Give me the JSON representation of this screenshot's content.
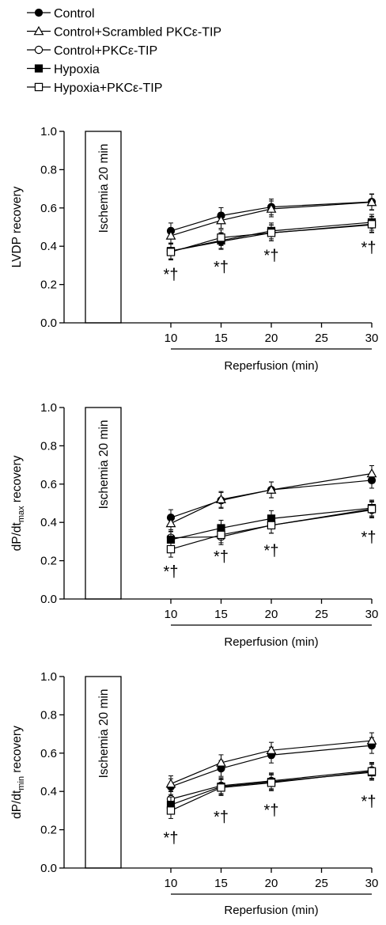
{
  "legend": [
    {
      "label": "Control",
      "marker": "circle-filled"
    },
    {
      "label": "Control+Scrambled PKCε-TIP",
      "marker": "triangle-open"
    },
    {
      "label": "Control+PKCε-TIP",
      "marker": "circle-open"
    },
    {
      "label": "Hypoxia",
      "marker": "square-filled"
    },
    {
      "label": "Hypoxia+PKCε-TIP",
      "marker": "square-open"
    }
  ],
  "ischemia_label": "Ischemia 20 min",
  "significance_label": "*†",
  "chart_data": [
    {
      "type": "line",
      "ylabel": "LVDP recovery",
      "ylabel_main": "LVDP recovery",
      "ylabel_sub": "",
      "ylabel_tail": "",
      "xlabel": "Reperfusion (min)",
      "ylim": [
        0,
        1.0
      ],
      "y_ticks": [
        "0.0",
        "0.2",
        "0.4",
        "0.6",
        "0.8",
        "1.0"
      ],
      "x_ticks": [
        "10",
        "15",
        "20",
        "25",
        "30"
      ],
      "x": [
        10,
        15,
        20,
        30
      ],
      "series": [
        {
          "name": "Control",
          "values": [
            0.48,
            0.56,
            0.605,
            0.632
          ]
        },
        {
          "name": "Control+Scrambled PKCε-TIP",
          "values": [
            0.455,
            0.535,
            0.595,
            0.63
          ]
        },
        {
          "name": "Control+PKCε-TIP",
          "values": [
            0.375,
            0.425,
            0.47,
            0.512
          ]
        },
        {
          "name": "Hypoxia",
          "values": [
            0.375,
            0.43,
            0.48,
            0.525
          ]
        },
        {
          "name": "Hypoxia+PKCε-TIP",
          "values": [
            0.37,
            0.445,
            0.47,
            0.515
          ]
        }
      ],
      "annotations": [
        {
          "x": 10,
          "y": 0.25
        },
        {
          "x": 15,
          "y": 0.29
        },
        {
          "x": 20,
          "y": 0.35
        },
        {
          "x": 30,
          "y": 0.39
        }
      ]
    },
    {
      "type": "line",
      "ylabel": "dP/dtmax recovery",
      "ylabel_main": "dP/dt",
      "ylabel_sub": "max",
      "ylabel_tail": " recovery",
      "xlabel": "Reperfusion (min)",
      "ylim": [
        0,
        1.0
      ],
      "y_ticks": [
        "0.0",
        "0.2",
        "0.4",
        "0.6",
        "0.8",
        "1.0"
      ],
      "x_ticks": [
        "10",
        "15",
        "20",
        "25",
        "30"
      ],
      "x": [
        10,
        15,
        20,
        30
      ],
      "series": [
        {
          "name": "Control",
          "values": [
            0.425,
            0.515,
            0.57,
            0.62
          ]
        },
        {
          "name": "Control+Scrambled PKCε-TIP",
          "values": [
            0.395,
            0.52,
            0.57,
            0.655
          ]
        },
        {
          "name": "Control+PKCε-TIP",
          "values": [
            0.32,
            0.325,
            0.385,
            0.465
          ]
        },
        {
          "name": "Hypoxia",
          "values": [
            0.31,
            0.37,
            0.42,
            0.475
          ]
        },
        {
          "name": "Hypoxia+PKCε-TIP",
          "values": [
            0.26,
            0.335,
            0.385,
            0.47
          ]
        }
      ],
      "annotations": [
        {
          "x": 10,
          "y": 0.14
        },
        {
          "x": 15,
          "y": 0.22
        },
        {
          "x": 20,
          "y": 0.25
        },
        {
          "x": 30,
          "y": 0.32
        }
      ]
    },
    {
      "type": "line",
      "ylabel": "dP/dtmin recovery",
      "ylabel_main": "dP/dt",
      "ylabel_sub": "min",
      "ylabel_tail": " recovery",
      "xlabel": "Reperfusion (min)",
      "ylim": [
        0,
        1.0
      ],
      "y_ticks": [
        "0.0",
        "0.2",
        "0.4",
        "0.6",
        "0.8",
        "1.0"
      ],
      "x_ticks": [
        "10",
        "15",
        "20",
        "25",
        "30"
      ],
      "x": [
        10,
        15,
        20,
        30
      ],
      "series": [
        {
          "name": "Control",
          "values": [
            0.425,
            0.52,
            0.59,
            0.64
          ]
        },
        {
          "name": "Control+Scrambled PKCε-TIP",
          "values": [
            0.44,
            0.55,
            0.615,
            0.665
          ]
        },
        {
          "name": "Control+PKCε-TIP",
          "values": [
            0.36,
            0.43,
            0.455,
            0.51
          ]
        },
        {
          "name": "Hypoxia",
          "values": [
            0.33,
            0.425,
            0.45,
            0.5
          ]
        },
        {
          "name": "Hypoxia+PKCε-TIP",
          "values": [
            0.3,
            0.42,
            0.445,
            0.505
          ]
        }
      ],
      "annotations": [
        {
          "x": 10,
          "y": 0.155
        },
        {
          "x": 15,
          "y": 0.265
        },
        {
          "x": 20,
          "y": 0.3
        },
        {
          "x": 30,
          "y": 0.345
        }
      ]
    }
  ]
}
